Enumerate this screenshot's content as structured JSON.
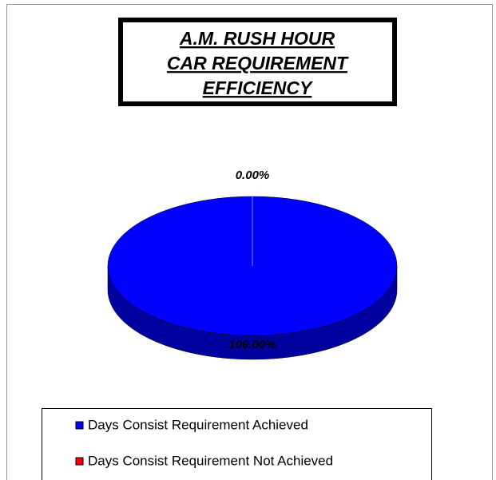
{
  "chart_data": {
    "type": "pie",
    "title": [
      "A.M. RUSH HOUR",
      "CAR REQUIREMENT",
      "EFFICIENCY"
    ],
    "categories": [
      "Days Consist Requirement Achieved",
      "Days Consist Requirement Not Achieved"
    ],
    "values": [
      100,
      0
    ],
    "value_labels": [
      "100.00%",
      "0.00%"
    ],
    "colors": [
      "#0000ff",
      "#ff0000"
    ]
  }
}
